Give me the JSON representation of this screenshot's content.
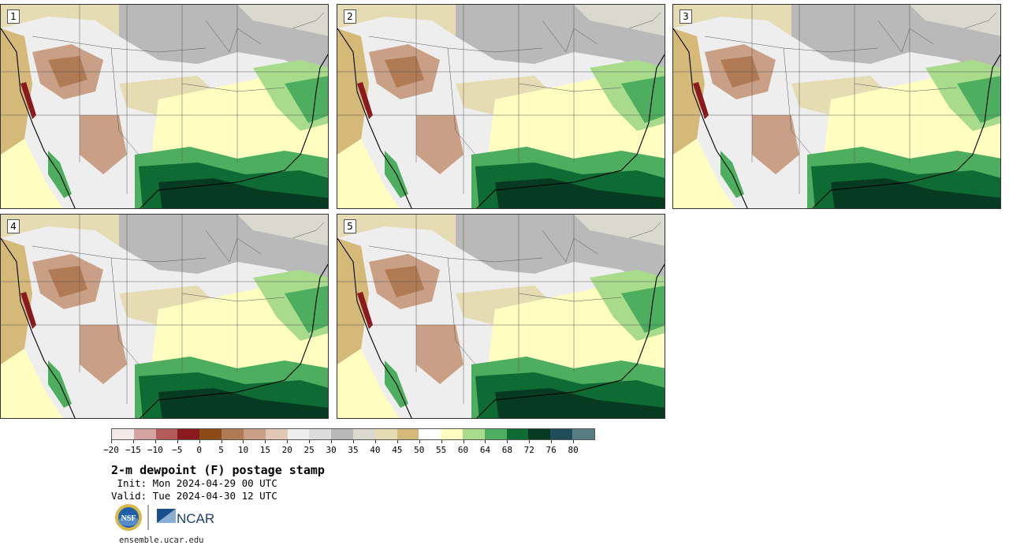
{
  "panels": [
    {
      "label": "1"
    },
    {
      "label": "2"
    },
    {
      "label": "3"
    },
    {
      "label": "4"
    },
    {
      "label": "5"
    }
  ],
  "colorbar": {
    "colors": [
      "#f4e9e9",
      "#d6a3a3",
      "#b35a5a",
      "#8b1a1f",
      "#8b4a16",
      "#b07a55",
      "#c9a086",
      "#e2c7b6",
      "#eeeeee",
      "#dcdcdc",
      "#b9b9b9",
      "#d9d9cf",
      "#e6dcb4",
      "#d4b978",
      "#ffffff",
      "#fffec0",
      "#a8dc8c",
      "#4cae5e",
      "#0d6b33",
      "#063b21",
      "#1f4e5a",
      "#557d82"
    ],
    "tick_labels": [
      "−20",
      "−15",
      "−10",
      "−5",
      "0",
      "5",
      "10",
      "15",
      "20",
      "25",
      "30",
      "35",
      "40",
      "45",
      "50",
      "55",
      "60",
      "64",
      "68",
      "72",
      "76",
      "80"
    ]
  },
  "text": {
    "title": "2-m dewpoint (F) postage stamp",
    "init": " Init: Mon 2024-04-29 00 UTC",
    "valid": "Valid: Tue 2024-04-30 12 UTC",
    "site": "ensemble.ucar.edu"
  },
  "logos": {
    "nsf": "NSF",
    "ncar": "NCAR"
  }
}
